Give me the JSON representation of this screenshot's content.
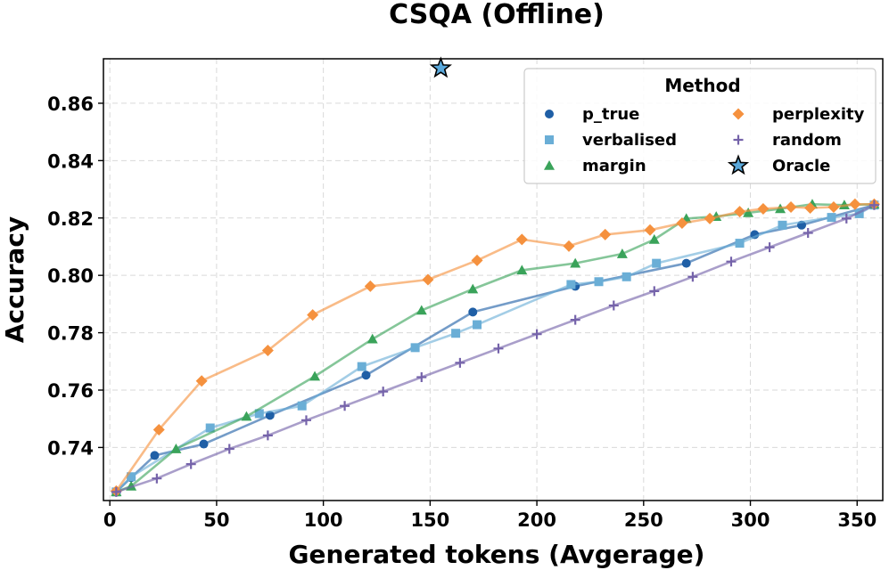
{
  "chart_data": {
    "type": "line",
    "title": "CSQA (Offline)",
    "xlabel": "Generated tokens (Avgerage)",
    "ylabel": "Accuracy",
    "xlim": [
      -3,
      362
    ],
    "ylim": [
      0.7215,
      0.8755
    ],
    "xticks": [
      0,
      50,
      100,
      150,
      200,
      250,
      300,
      350
    ],
    "yticks": [
      0.74,
      0.76,
      0.78,
      0.8,
      0.82,
      0.84,
      0.86
    ],
    "xtick_labels": [
      "0",
      "50",
      "100",
      "150",
      "200",
      "250",
      "300",
      "350"
    ],
    "ytick_labels": [
      "0.74",
      "0.76",
      "0.78",
      "0.80",
      "0.82",
      "0.84",
      "0.86"
    ],
    "grid": true,
    "legend": {
      "title": "Method",
      "placement": "top-right"
    },
    "series": [
      {
        "name": "p_true",
        "color": "#1f5fa6",
        "marker": "circle",
        "x": [
          3,
          10,
          21,
          44,
          75,
          120,
          170,
          218,
          270,
          302,
          324,
          358
        ],
        "y": [
          0.7245,
          0.7295,
          0.7372,
          0.7412,
          0.7512,
          0.7652,
          0.7872,
          0.7962,
          0.8042,
          0.8142,
          0.8175,
          0.8245
        ]
      },
      {
        "name": "verbalised",
        "color": "#6aaed6",
        "marker": "square",
        "x": [
          3,
          10,
          47,
          70,
          90,
          118,
          143,
          162,
          172,
          216,
          229,
          242,
          256,
          295,
          315,
          338,
          351,
          358
        ],
        "y": [
          0.7245,
          0.7298,
          0.7468,
          0.7518,
          0.7545,
          0.7682,
          0.7748,
          0.7798,
          0.7828,
          0.7968,
          0.7978,
          0.7995,
          0.8042,
          0.8112,
          0.8175,
          0.8202,
          0.8215,
          0.8245
        ]
      },
      {
        "name": "margin",
        "color": "#3aa35a",
        "marker": "triangle",
        "x": [
          3,
          10,
          31,
          64,
          96,
          123,
          146,
          170,
          193,
          218,
          240,
          255,
          270,
          284,
          299,
          314,
          329,
          344,
          358
        ],
        "y": [
          0.7245,
          0.7265,
          0.7395,
          0.7508,
          0.7648,
          0.7778,
          0.7878,
          0.7952,
          0.8018,
          0.8042,
          0.8075,
          0.8125,
          0.8198,
          0.8205,
          0.8218,
          0.8232,
          0.8248,
          0.8245,
          0.8248
        ]
      },
      {
        "name": "perplexity",
        "color": "#f5913e",
        "marker": "diamond",
        "x": [
          3,
          23,
          43,
          74,
          95,
          122,
          149,
          172,
          193,
          215,
          232,
          253,
          268,
          281,
          295,
          306,
          319,
          328,
          339,
          349,
          358
        ],
        "y": [
          0.7248,
          0.7462,
          0.7632,
          0.7738,
          0.7862,
          0.7962,
          0.7985,
          0.8052,
          0.8125,
          0.8102,
          0.8142,
          0.8158,
          0.8182,
          0.8198,
          0.8222,
          0.8232,
          0.8238,
          0.8235,
          0.8238,
          0.8248,
          0.8248
        ]
      },
      {
        "name": "random",
        "color": "#7563aa",
        "marker": "plus",
        "x": [
          3,
          22,
          38,
          56,
          74,
          92,
          110,
          128,
          146,
          164,
          182,
          200,
          218,
          236,
          255,
          273,
          291,
          309,
          327,
          345,
          358
        ],
        "y": [
          0.7245,
          0.7292,
          0.7342,
          0.7395,
          0.7442,
          0.7495,
          0.7545,
          0.7595,
          0.7645,
          0.7695,
          0.7745,
          0.7795,
          0.7845,
          0.7895,
          0.7945,
          0.7995,
          0.8048,
          0.8098,
          0.8148,
          0.8198,
          0.8245
        ]
      }
    ],
    "oracle": {
      "name": "Oracle",
      "color": "#5aa9dc",
      "marker": "star",
      "x": 155,
      "y": 0.8722
    }
  }
}
